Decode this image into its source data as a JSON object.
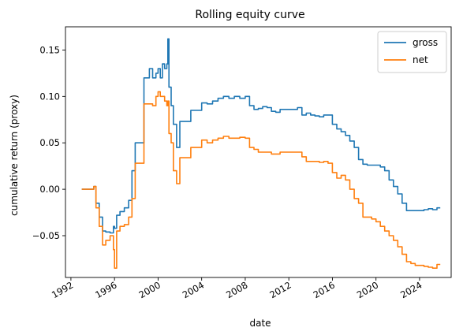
{
  "chart_data": {
    "type": "line",
    "title": "Rolling equity curve",
    "xlabel": "date",
    "ylabel": "cumulative return (proxy)",
    "xlim": [
      1991.5,
      2026.9
    ],
    "ylim": [
      -0.095,
      0.175
    ],
    "x_ticks": [
      1992,
      1996,
      2000,
      2004,
      2008,
      2012,
      2016,
      2020,
      2024
    ],
    "x_tick_labels": [
      "1992",
      "1996",
      "2000",
      "2004",
      "2008",
      "2012",
      "2016",
      "2020",
      "2024"
    ],
    "y_ticks": [
      -0.05,
      0.0,
      0.05,
      0.1,
      0.15
    ],
    "y_tick_labels": [
      "−0.05",
      "0.00",
      "0.05",
      "0.10",
      "0.15"
    ],
    "grid": false,
    "legend_position": "top-right",
    "series": [
      {
        "name": "gross",
        "color": "#1f77b4",
        "x": [
          1993.0,
          1994.0,
          1994.1,
          1994.3,
          1994.6,
          1994.9,
          1995.2,
          1995.6,
          1995.9,
          1996.0,
          1996.2,
          1996.5,
          1996.9,
          1997.3,
          1997.6,
          1997.9,
          1998.2,
          1998.7,
          1998.8,
          1999.2,
          1999.5,
          1999.8,
          2000.0,
          2000.2,
          2000.4,
          2000.6,
          2000.8,
          2000.9,
          2001.0,
          2001.2,
          2001.4,
          2001.7,
          2002.0,
          2002.5,
          2003.0,
          2003.5,
          2004.0,
          2004.5,
          2005.0,
          2005.5,
          2006.0,
          2006.5,
          2007.0,
          2007.5,
          2008.0,
          2008.4,
          2008.8,
          2009.2,
          2009.6,
          2010.0,
          2010.4,
          2010.8,
          2011.2,
          2011.6,
          2012.0,
          2012.4,
          2012.8,
          2013.2,
          2013.6,
          2014.0,
          2014.4,
          2014.8,
          2015.2,
          2015.6,
          2016.0,
          2016.4,
          2016.8,
          2017.2,
          2017.6,
          2018.0,
          2018.4,
          2018.8,
          2019.2,
          2019.6,
          2020.0,
          2020.4,
          2020.8,
          2021.2,
          2021.6,
          2022.0,
          2022.4,
          2022.8,
          2023.2,
          2023.6,
          2024.0,
          2024.4,
          2024.8,
          2025.2,
          2025.6,
          2025.9
        ],
        "values": [
          0.0,
          0.0,
          0.003,
          -0.015,
          -0.03,
          -0.045,
          -0.046,
          -0.047,
          -0.04,
          -0.042,
          -0.028,
          -0.024,
          -0.02,
          -0.012,
          0.02,
          0.05,
          0.05,
          0.12,
          0.12,
          0.13,
          0.12,
          0.125,
          0.13,
          0.12,
          0.135,
          0.13,
          0.135,
          0.162,
          0.11,
          0.09,
          0.07,
          0.045,
          0.073,
          0.073,
          0.085,
          0.085,
          0.093,
          0.092,
          0.095,
          0.098,
          0.1,
          0.098,
          0.1,
          0.098,
          0.1,
          0.09,
          0.086,
          0.087,
          0.089,
          0.088,
          0.084,
          0.083,
          0.086,
          0.086,
          0.086,
          0.086,
          0.088,
          0.08,
          0.082,
          0.08,
          0.079,
          0.078,
          0.08,
          0.08,
          0.07,
          0.065,
          0.062,
          0.058,
          0.052,
          0.045,
          0.032,
          0.027,
          0.026,
          0.026,
          0.026,
          0.024,
          0.02,
          0.01,
          0.003,
          -0.005,
          -0.015,
          -0.023,
          -0.023,
          -0.023,
          -0.023,
          -0.022,
          -0.021,
          -0.022,
          -0.02,
          -0.02
        ]
      },
      {
        "name": "net",
        "color": "#ff7f0e",
        "x": [
          1993.0,
          1994.0,
          1994.1,
          1994.3,
          1994.6,
          1994.9,
          1995.2,
          1995.6,
          1995.9,
          1996.0,
          1996.2,
          1996.5,
          1996.9,
          1997.3,
          1997.6,
          1997.9,
          1998.2,
          1998.7,
          1998.8,
          1999.2,
          1999.5,
          1999.8,
          2000.0,
          2000.2,
          2000.4,
          2000.6,
          2000.8,
          2000.9,
          2001.0,
          2001.2,
          2001.4,
          2001.7,
          2002.0,
          2002.5,
          2003.0,
          2003.5,
          2004.0,
          2004.5,
          2005.0,
          2005.5,
          2006.0,
          2006.5,
          2007.0,
          2007.5,
          2008.0,
          2008.4,
          2008.8,
          2009.2,
          2009.6,
          2010.0,
          2010.4,
          2010.8,
          2011.2,
          2011.6,
          2012.0,
          2012.4,
          2012.8,
          2013.2,
          2013.6,
          2014.0,
          2014.4,
          2014.8,
          2015.2,
          2015.6,
          2016.0,
          2016.4,
          2016.8,
          2017.2,
          2017.6,
          2018.0,
          2018.4,
          2018.8,
          2019.2,
          2019.6,
          2020.0,
          2020.4,
          2020.8,
          2021.2,
          2021.6,
          2022.0,
          2022.4,
          2022.8,
          2023.2,
          2023.6,
          2024.0,
          2024.4,
          2024.8,
          2025.2,
          2025.6,
          2025.9
        ],
        "values": [
          0.0,
          0.0,
          0.003,
          -0.02,
          -0.04,
          -0.06,
          -0.055,
          -0.05,
          -0.065,
          -0.085,
          -0.045,
          -0.04,
          -0.038,
          -0.03,
          -0.01,
          0.028,
          0.028,
          0.092,
          0.092,
          0.092,
          0.09,
          0.1,
          0.105,
          0.1,
          0.1,
          0.095,
          0.09,
          0.095,
          0.06,
          0.05,
          0.02,
          0.006,
          0.034,
          0.034,
          0.045,
          0.045,
          0.053,
          0.05,
          0.053,
          0.055,
          0.057,
          0.055,
          0.055,
          0.056,
          0.055,
          0.045,
          0.043,
          0.04,
          0.04,
          0.04,
          0.038,
          0.038,
          0.04,
          0.04,
          0.04,
          0.04,
          0.04,
          0.035,
          0.03,
          0.03,
          0.03,
          0.029,
          0.03,
          0.028,
          0.018,
          0.012,
          0.015,
          0.01,
          0.0,
          -0.01,
          -0.015,
          -0.03,
          -0.03,
          -0.032,
          -0.035,
          -0.04,
          -0.045,
          -0.05,
          -0.055,
          -0.062,
          -0.07,
          -0.078,
          -0.08,
          -0.082,
          -0.082,
          -0.083,
          -0.084,
          -0.085,
          -0.081,
          -0.081
        ]
      }
    ]
  }
}
